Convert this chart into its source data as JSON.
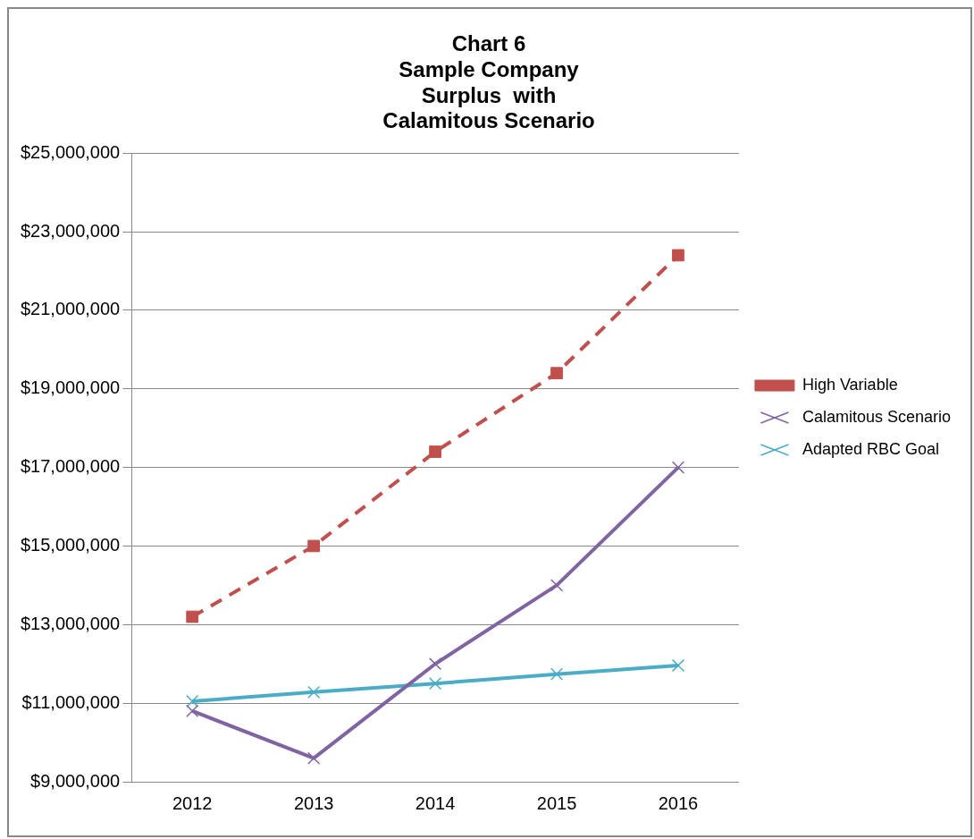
{
  "chart_data": {
    "type": "line",
    "title": "Chart 6\nSample Company\nSurplus  with\nCalamitous Scenario",
    "categories": [
      "2012",
      "2013",
      "2014",
      "2015",
      "2016"
    ],
    "series": [
      {
        "name": "High Variable",
        "color": "#c0504d",
        "values": [
          13200000,
          15000000,
          17400000,
          19400000,
          22400000
        ],
        "marker": "square",
        "line_style": "dashed"
      },
      {
        "name": "Calamitous Scenario",
        "color": "#8064a2",
        "values": [
          10800000,
          9600000,
          12000000,
          14000000,
          17000000
        ],
        "marker": "cross",
        "line_style": "solid"
      },
      {
        "name": "Adapted RBC Goal",
        "color": "#4bacc6",
        "values": [
          11050000,
          11280000,
          11500000,
          11740000,
          11960000
        ],
        "marker": "cross",
        "line_style": "solid"
      }
    ],
    "ylim": [
      9000000,
      25000000
    ],
    "yticks": [
      {
        "value": 9000000,
        "label": "$9,000,000"
      },
      {
        "value": 11000000,
        "label": "$11,000,000"
      },
      {
        "value": 13000000,
        "label": "$13,000,000"
      },
      {
        "value": 15000000,
        "label": "$15,000,000"
      },
      {
        "value": 17000000,
        "label": "$17,000,000"
      },
      {
        "value": 19000000,
        "label": "$19,000,000"
      },
      {
        "value": 21000000,
        "label": "$21,000,000"
      },
      {
        "value": 23000000,
        "label": "$23,000,000"
      },
      {
        "value": 25000000,
        "label": "$25,000,000"
      }
    ],
    "grid": "y",
    "legend": "right"
  }
}
